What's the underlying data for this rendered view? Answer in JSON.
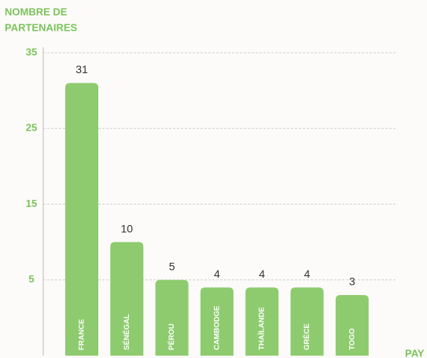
{
  "chart_data": {
    "type": "bar",
    "y_label": [
      "NOMBRE DE",
      "PARTENAIRES"
    ],
    "x_label": "PAY",
    "categories": [
      "FRANCE",
      "SÉNÉGAL",
      "PÉROU",
      "CAMBODGE",
      "THAÏLANDE",
      "GRÈCE",
      "TOGO"
    ],
    "values": [
      31,
      10,
      5,
      4,
      4,
      4,
      3
    ],
    "color": "#8dcb6e",
    "ylim": [
      -5,
      35
    ],
    "yticks": [
      5,
      15,
      25,
      35
    ],
    "grid": true
  }
}
